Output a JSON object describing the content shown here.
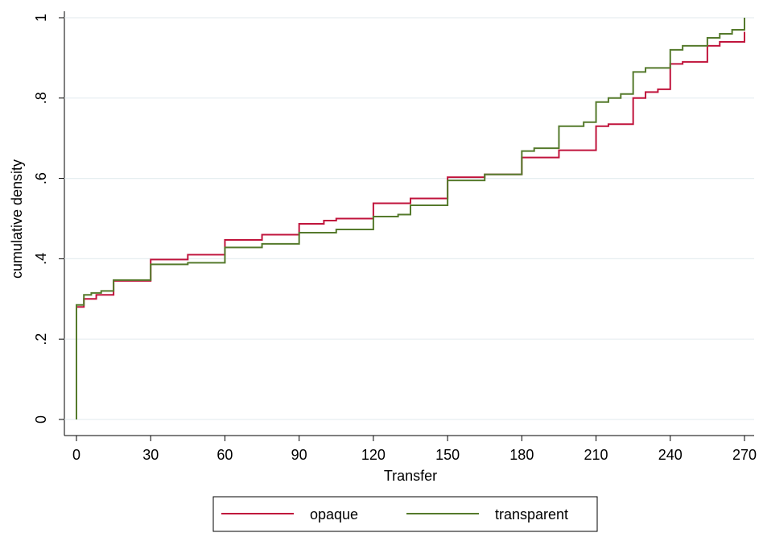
{
  "chart_data": {
    "type": "step",
    "xlabel": "Transfer",
    "ylabel": "cumulative density",
    "xlim": [
      0,
      270
    ],
    "ylim": [
      0,
      1
    ],
    "xticks": [
      0,
      30,
      60,
      90,
      120,
      150,
      180,
      210,
      240,
      270
    ],
    "yticks": [
      0,
      {
        "value": 0.2,
        "label": ".2"
      },
      {
        "value": 0.4,
        "label": ".4"
      },
      {
        "value": 0.6,
        "label": ".6"
      },
      {
        "value": 0.8,
        "label": ".8"
      },
      1
    ],
    "grid": true,
    "legend": "bottom",
    "series": [
      {
        "name": "opaque",
        "color": "#c0143c",
        "x": [
          0,
          0,
          3,
          8,
          15,
          30,
          45,
          60,
          75,
          90,
          100,
          105,
          120,
          135,
          150,
          165,
          180,
          195,
          210,
          215,
          225,
          230,
          235,
          240,
          245,
          255,
          260,
          270
        ],
        "values": [
          0,
          0.28,
          0.3,
          0.31,
          0.345,
          0.398,
          0.41,
          0.447,
          0.46,
          0.487,
          0.495,
          0.5,
          0.538,
          0.55,
          0.603,
          0.61,
          0.652,
          0.67,
          0.73,
          0.735,
          0.8,
          0.815,
          0.822,
          0.885,
          0.89,
          0.93,
          0.94,
          0.965
        ]
      },
      {
        "name": "transparent",
        "color": "#557a2c",
        "x": [
          0,
          0,
          3,
          6,
          10,
          15,
          30,
          45,
          60,
          75,
          90,
          105,
          120,
          130,
          135,
          150,
          165,
          180,
          185,
          195,
          205,
          210,
          215,
          220,
          225,
          230,
          240,
          245,
          255,
          260,
          265,
          270
        ],
        "values": [
          0,
          0.285,
          0.31,
          0.315,
          0.32,
          0.347,
          0.386,
          0.39,
          0.428,
          0.437,
          0.465,
          0.473,
          0.505,
          0.51,
          0.533,
          0.595,
          0.61,
          0.668,
          0.675,
          0.73,
          0.74,
          0.79,
          0.8,
          0.81,
          0.865,
          0.875,
          0.92,
          0.93,
          0.95,
          0.96,
          0.97,
          1
        ]
      }
    ]
  }
}
